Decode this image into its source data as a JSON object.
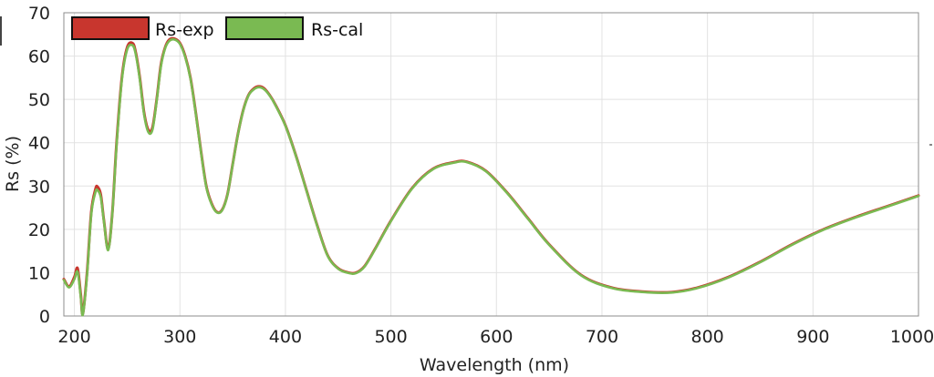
{
  "chart_data": {
    "type": "line",
    "title": "",
    "xlabel": "Wavelength (nm)",
    "ylabel": "Rs (%)",
    "xlim": [
      190,
      1000
    ],
    "ylim": [
      0,
      70
    ],
    "xticks": [
      200,
      300,
      400,
      500,
      600,
      700,
      800,
      900,
      1000
    ],
    "yticks": [
      0,
      10,
      20,
      30,
      40,
      50,
      60,
      70
    ],
    "grid": true,
    "legend_position": "top-left",
    "series": [
      {
        "name": "Rs-exp",
        "color": "#c8362e",
        "x": [
          190,
          195,
          200,
          203,
          206,
          208,
          212,
          216,
          220,
          222,
          225,
          228,
          232,
          236,
          240,
          245,
          250,
          255,
          258,
          262,
          266,
          270,
          274,
          278,
          282,
          286,
          290,
          295,
          300,
          305,
          310,
          315,
          320,
          325,
          330,
          335,
          340,
          345,
          350,
          355,
          360,
          365,
          370,
          375,
          380,
          385,
          390,
          400,
          410,
          420,
          430,
          440,
          450,
          460,
          467,
          475,
          485,
          500,
          520,
          540,
          560,
          572,
          590,
          610,
          630,
          650,
          680,
          710,
          740,
          766,
          790,
          820,
          850,
          880,
          910,
          940,
          970,
          1000
        ],
        "y": [
          8.5,
          6.8,
          9.0,
          11.0,
          5.0,
          0.5,
          10.0,
          24.0,
          29.3,
          29.8,
          28.0,
          22.0,
          15.5,
          24.0,
          40.0,
          55.0,
          62.0,
          63.0,
          61.0,
          55.0,
          47.0,
          43.0,
          43.5,
          50.0,
          58.0,
          62.0,
          63.8,
          64.0,
          63.0,
          60.0,
          55.0,
          47.0,
          38.0,
          30.0,
          26.0,
          24.0,
          24.5,
          28.0,
          35.0,
          42.0,
          47.5,
          51.0,
          52.5,
          53.0,
          52.5,
          51.0,
          49.0,
          44.0,
          37.0,
          29.0,
          21.0,
          14.0,
          11.0,
          10.0,
          10.0,
          11.5,
          15.5,
          22.0,
          29.5,
          34.0,
          35.5,
          35.6,
          33.5,
          28.5,
          22.5,
          16.5,
          9.5,
          6.5,
          5.6,
          5.5,
          6.5,
          9.0,
          12.5,
          16.5,
          20.0,
          22.8,
          25.3,
          27.8
        ]
      },
      {
        "name": "Rs-cal",
        "color": "#7aba52",
        "x": [
          190,
          195,
          200,
          203,
          206,
          208,
          212,
          216,
          220,
          222,
          225,
          228,
          232,
          236,
          240,
          245,
          250,
          255,
          258,
          262,
          266,
          270,
          274,
          278,
          282,
          286,
          290,
          295,
          300,
          305,
          310,
          315,
          320,
          325,
          330,
          335,
          340,
          345,
          350,
          355,
          360,
          365,
          370,
          375,
          380,
          385,
          390,
          400,
          410,
          420,
          430,
          440,
          450,
          460,
          467,
          475,
          485,
          500,
          520,
          540,
          560,
          572,
          590,
          610,
          630,
          650,
          680,
          710,
          740,
          766,
          790,
          820,
          850,
          880,
          910,
          940,
          970,
          1000
        ],
        "y": [
          8.3,
          6.6,
          8.5,
          10.2,
          4.5,
          0.3,
          9.5,
          23.5,
          28.6,
          29.0,
          27.4,
          21.8,
          15.2,
          23.8,
          39.5,
          54.5,
          61.5,
          62.5,
          60.6,
          54.6,
          46.6,
          42.5,
          43.0,
          49.7,
          57.6,
          61.8,
          63.5,
          63.8,
          62.8,
          59.8,
          54.8,
          46.8,
          37.8,
          29.8,
          25.8,
          23.9,
          24.4,
          27.9,
          34.9,
          41.9,
          47.4,
          50.9,
          52.3,
          52.8,
          52.3,
          50.9,
          48.9,
          43.9,
          36.9,
          28.9,
          20.9,
          13.9,
          10.9,
          9.9,
          9.9,
          11.4,
          15.4,
          21.9,
          29.4,
          33.9,
          35.4,
          35.5,
          33.4,
          28.4,
          22.4,
          16.4,
          9.4,
          6.4,
          5.5,
          5.4,
          6.4,
          8.9,
          12.4,
          16.4,
          19.9,
          22.7,
          25.2,
          27.7
        ]
      }
    ]
  }
}
